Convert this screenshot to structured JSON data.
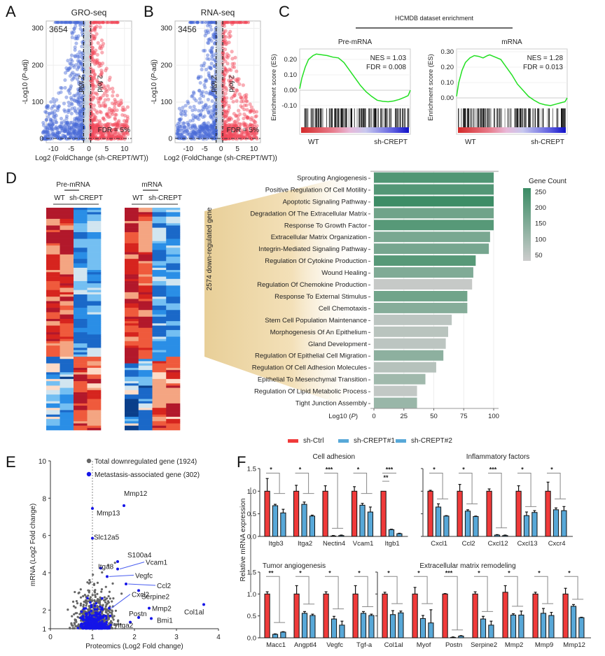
{
  "figure": {
    "panel_letters": [
      "A",
      "B",
      "C",
      "D",
      "E",
      "F"
    ]
  },
  "chart_data": [
    {
      "panel": "A",
      "type": "scatter",
      "title": "GRO-seq",
      "xlabel": "Log2 (FoldChange (sh-CREPT/WT))",
      "ylabel": "-Log10 (P-adj)",
      "xlim": [
        -12,
        12
      ],
      "ylim": [
        -10,
        320
      ],
      "xticks": [
        -10,
        -5,
        0,
        5,
        10
      ],
      "yticks": [
        0,
        100,
        200,
        300
      ],
      "count_label": "3654",
      "fold_line_label": "2 fold",
      "fdr_label": "FDR = 5%",
      "fold_thresholds": [
        -1.5,
        0.5
      ],
      "fdr_threshold": 1.3,
      "series": [
        {
          "name": "down",
          "color": "#4a6bd8",
          "seed": 11,
          "n": 520,
          "side": -1,
          "maxx": 11.5
        },
        {
          "name": "up",
          "color": "#f24a5a",
          "seed": 17,
          "n": 520,
          "side": 1,
          "maxx": 10.5
        },
        {
          "name": "ns",
          "color": "#c9d3dc",
          "seed": 23,
          "n": 120,
          "side": 0,
          "maxx": 1
        }
      ]
    },
    {
      "panel": "B",
      "type": "scatter",
      "title": "RNA-seq",
      "xlabel": "Log2 (FoldChange (sh-CREPT/WT))",
      "ylabel": "-Log10 (P-adj)",
      "xlim": [
        -14,
        12
      ],
      "ylim": [
        -10,
        320
      ],
      "xticks": [
        -10,
        -5,
        0,
        5,
        10
      ],
      "yticks": [
        0,
        100,
        200,
        300
      ],
      "count_label": "3456",
      "fold_line_label": "2 fold",
      "fdr_label": "FDR = 5%",
      "fold_thresholds": [
        -1.5,
        0.5
      ],
      "fdr_threshold": 1.3,
      "series": [
        {
          "name": "down",
          "color": "#4a6bd8",
          "seed": 31,
          "n": 480,
          "side": -1,
          "maxx": 12
        },
        {
          "name": "up",
          "color": "#f24a5a",
          "seed": 37,
          "n": 480,
          "side": 1,
          "maxx": 10.5
        },
        {
          "name": "ns",
          "color": "#c9d3dc",
          "seed": 41,
          "n": 120,
          "side": 0,
          "maxx": 1
        }
      ]
    },
    {
      "panel": "C",
      "type": "line",
      "header": "HCMDB dataset enrichment",
      "plots": [
        {
          "title": "Pre-mRNA",
          "ylabel": "Enrichment score (ES)",
          "ylim": [
            -0.1,
            0.25
          ],
          "yticks": [
            "0.20",
            "0.10",
            "0.00",
            "-0.10"
          ],
          "ytick_values": [
            0.2,
            0.1,
            0.0,
            -0.1
          ],
          "nes": "NES =  1.03",
          "fdr": "FDR = 0.008",
          "xlabels": [
            "WT",
            "sh-CREPT"
          ],
          "es_curve": [
            [
              0,
              0.01
            ],
            [
              0.02,
              0.08
            ],
            [
              0.05,
              0.15
            ],
            [
              0.08,
              0.2
            ],
            [
              0.12,
              0.225
            ],
            [
              0.15,
              0.235
            ],
            [
              0.2,
              0.23
            ],
            [
              0.25,
              0.225
            ],
            [
              0.3,
              0.215
            ],
            [
              0.35,
              0.21
            ],
            [
              0.4,
              0.18
            ],
            [
              0.45,
              0.13
            ],
            [
              0.5,
              0.08
            ],
            [
              0.55,
              0.03
            ],
            [
              0.6,
              -0.01
            ],
            [
              0.65,
              -0.04
            ],
            [
              0.7,
              -0.065
            ],
            [
              0.75,
              -0.072
            ],
            [
              0.8,
              -0.075
            ],
            [
              0.85,
              -0.07
            ],
            [
              0.9,
              -0.06
            ],
            [
              0.95,
              -0.045
            ],
            [
              0.98,
              -0.035
            ],
            [
              1.0,
              0.0
            ]
          ]
        },
        {
          "title": "mRNA",
          "ylabel": "Enrichment score (ES)",
          "ylim": [
            -0.05,
            0.3
          ],
          "yticks": [
            "0.30",
            "0.20",
            "0.10",
            "0.00"
          ],
          "ytick_values": [
            0.3,
            0.2,
            0.1,
            0.0
          ],
          "nes": "NES =  1.28",
          "fdr": "FDR = 0.013",
          "xlabels": [
            "WT",
            "sh-CREPT"
          ],
          "es_curve": [
            [
              0,
              0.01
            ],
            [
              0.02,
              0.1
            ],
            [
              0.05,
              0.18
            ],
            [
              0.08,
              0.23
            ],
            [
              0.12,
              0.26
            ],
            [
              0.16,
              0.275
            ],
            [
              0.2,
              0.27
            ],
            [
              0.24,
              0.26
            ],
            [
              0.28,
              0.275
            ],
            [
              0.3,
              0.28
            ],
            [
              0.35,
              0.265
            ],
            [
              0.4,
              0.25
            ],
            [
              0.45,
              0.2
            ],
            [
              0.5,
              0.15
            ],
            [
              0.55,
              0.09
            ],
            [
              0.6,
              0.05
            ],
            [
              0.65,
              0.01
            ],
            [
              0.7,
              -0.015
            ],
            [
              0.75,
              -0.035
            ],
            [
              0.8,
              -0.045
            ],
            [
              0.85,
              -0.05
            ],
            [
              0.9,
              -0.04
            ],
            [
              0.95,
              -0.03
            ],
            [
              0.98,
              -0.025
            ],
            [
              1.0,
              0.0
            ]
          ]
        }
      ]
    },
    {
      "panel": "D-heatmap",
      "type": "heatmap",
      "groups": [
        {
          "title": "Pre-mRNA",
          "subgroups": [
            "WT",
            "sh-CREPT"
          ],
          "seed": 5
        },
        {
          "title": "mRNA",
          "subgroups": [
            "WT",
            "sh-CREPT"
          ],
          "seed": 9
        }
      ],
      "side_label": "2574 down-regulated gene"
    },
    {
      "panel": "D-bar",
      "type": "bar",
      "orientation": "horizontal",
      "xlabel": "Log10 (P)",
      "xlim": [
        0,
        100
      ],
      "xticks": [
        0,
        25,
        50,
        75,
        100
      ],
      "legend_title": "Gene Count",
      "legend_ticks": [
        250,
        200,
        150,
        100,
        50
      ],
      "legend_range": [
        30,
        260
      ],
      "categories": [
        "Sprouting Angiogenesis",
        "Positive Regulation Of Cell Motility",
        "Apoptotic Signaling Pathway",
        "Degradation Of The Extracellular Matrix",
        "Response To Growth Factor",
        "Extracellular Matrix Organization",
        "Integrin-Mediated Signaling Pathway",
        "Regulation Of Cytokine Production",
        "Wound Healing",
        "Regulation Of Chemokine Production",
        "Response To External Stimulus",
        "Cell Chemotaxis",
        "Stem Cell Population Maintenance",
        "Morphogenesis Of An Epithelium",
        "Gland Development",
        "Regulation Of Epithelial Cell Migration",
        "Regulation Of Cell Adhesion Molecules",
        "Epithelial To Mesenchymal Transition",
        "Regulation Of Lipid Metabolic Process",
        "Tight Junction Assembly"
      ],
      "values": [
        100,
        100,
        100,
        100,
        100,
        97,
        96,
        85,
        83,
        82,
        78,
        78,
        65,
        62,
        60,
        58,
        52,
        43,
        36,
        36
      ],
      "gene_counts": [
        225,
        220,
        255,
        175,
        215,
        160,
        165,
        215,
        150,
        40,
        175,
        140,
        55,
        60,
        55,
        130,
        65,
        100,
        45,
        110
      ]
    },
    {
      "panel": "E",
      "type": "scatter",
      "xlabel": "Proteomics (Log2 Fold change)",
      "ylabel": "mRNA (Log2 Fold change)",
      "xlim": [
        0,
        4
      ],
      "ylim": [
        1,
        10
      ],
      "xticks": [
        0,
        1,
        2,
        3,
        4
      ],
      "yticks": [
        1,
        2,
        4,
        6,
        8,
        10
      ],
      "vline_x": 1.0,
      "legend": [
        {
          "label": "Total downregulated gene (1924)",
          "color": "#666666"
        },
        {
          "label": "Metastasis-associated gene (302)",
          "color": "#1515e8"
        }
      ],
      "labeled_points": [
        {
          "label": "Mmp12",
          "x": 1.75,
          "y": 7.6
        },
        {
          "label": "Mmp13",
          "x": 1.0,
          "y": 7.45
        },
        {
          "label": "Slc12a5",
          "x": 1.0,
          "y": 5.85
        },
        {
          "label": "S100a4",
          "x": 1.6,
          "y": 4.6
        },
        {
          "label": "Vcam1",
          "x": 1.6,
          "y": 4.2
        },
        {
          "label": "Itga8",
          "x": 1.2,
          "y": 4.25
        },
        {
          "label": "Vegfc",
          "x": 1.35,
          "y": 3.8
        },
        {
          "label": "Ccl2",
          "x": 1.8,
          "y": 3.4
        },
        {
          "label": "Serpine2",
          "x": 2.1,
          "y": 3.05
        },
        {
          "label": "Cxcl2",
          "x": 1.4,
          "y": 2.1
        },
        {
          "label": "Mmp2",
          "x": 2.35,
          "y": 2.1
        },
        {
          "label": "Postn",
          "x": 2.1,
          "y": 1.6
        },
        {
          "label": "Itga2",
          "x": 1.9,
          "y": 1.35
        },
        {
          "label": "Bmi1",
          "x": 2.4,
          "y": 1.55
        },
        {
          "label": "Col1al",
          "x": 3.65,
          "y": 2.3
        }
      ]
    },
    {
      "panel": "F",
      "type": "bar",
      "ylabel": "Relative mRNA expression",
      "ylim": [
        0,
        1.5
      ],
      "yticks": [
        "0.0",
        "0.5",
        "1.0",
        "1.5"
      ],
      "ytick_values": [
        0,
        0.5,
        1.0,
        1.5
      ],
      "legend": [
        {
          "label": "sh-Ctrl",
          "color": "#f03a3a"
        },
        {
          "label": "sh-CREPT#1",
          "color": "#58a8d8"
        },
        {
          "label": "sh-CREPT#2",
          "color": "#58a8d8"
        }
      ],
      "panels": [
        {
          "title": "Cell adhesion",
          "row": 0,
          "col": 0,
          "genes": [
            {
              "name": "Itgb3",
              "values": [
                1.0,
                0.68,
                0.52
              ],
              "err": [
                0.28,
                0.03,
                0.08
              ],
              "sig": "*",
              "bar_y": 0.95
            },
            {
              "name": "Itga2",
              "values": [
                1.0,
                0.71,
                0.45
              ],
              "err": [
                0.13,
                0.05,
                0.02
              ],
              "sig": "*",
              "bar_y": 0.95
            },
            {
              "name": "Nectin4",
              "values": [
                1.0,
                0.01,
                0.02
              ],
              "err": [
                0.12,
                0.01,
                0.01
              ],
              "sig": "***",
              "bar_y": 0.18
            },
            {
              "name": "Vcam1",
              "values": [
                1.0,
                0.69,
                0.54
              ],
              "err": [
                0.1,
                0.04,
                0.11
              ],
              "sig": "*",
              "bar_y": 0.95
            },
            {
              "name": "Itgb1",
              "values": [
                1.0,
                0.15,
                0.06
              ],
              "err": [
                0.0,
                0.01,
                0.01
              ],
              "sig": "***",
              "sig2": "**",
              "bar_y": null
            }
          ]
        },
        {
          "title": "Inflammatory factors",
          "row": 0,
          "col": 1,
          "genes": [
            {
              "name": "Cxcl1",
              "values": [
                1.0,
                0.65,
                0.45
              ],
              "err": [
                0.02,
                0.07,
                0.01
              ],
              "sig": "*",
              "bar_y": 0.83
            },
            {
              "name": "Ccl2",
              "values": [
                1.0,
                0.56,
                0.44
              ],
              "err": [
                0.15,
                0.03,
                0.01
              ],
              "sig": "*",
              "bar_y": 0.72
            },
            {
              "name": "Cxcl12",
              "values": [
                1.0,
                0.03,
                0.02
              ],
              "err": [
                0.05,
                0.01,
                0.01
              ],
              "sig": "***",
              "bar_y": 0.19
            },
            {
              "name": "Cxcl13",
              "values": [
                1.0,
                0.46,
                0.53
              ],
              "err": [
                0.12,
                0.08,
                0.04
              ],
              "sig": "*",
              "bar_y": 0.66
            },
            {
              "name": "Cxcr4",
              "values": [
                1.0,
                0.59,
                0.57
              ],
              "err": [
                0.2,
                0.04,
                0.09
              ],
              "sig": "*",
              "bar_y": 0.83
            }
          ]
        },
        {
          "title": "Tumor angiogenesis",
          "row": 1,
          "col": 0,
          "genes": [
            {
              "name": "Macc1",
              "values": [
                1.0,
                0.08,
                0.13
              ],
              "err": [
                0.05,
                0.01,
                0.01
              ],
              "sig": "**",
              "bar_y": 0.35
            },
            {
              "name": "Angptl4",
              "values": [
                1.0,
                0.56,
                0.51
              ],
              "err": [
                0.19,
                0.04,
                0.03
              ],
              "sig": "*",
              "bar_y": 0.77
            },
            {
              "name": "Vegfc",
              "values": [
                1.0,
                0.43,
                0.29
              ],
              "err": [
                0.05,
                0.06,
                0.09
              ],
              "sig": "*",
              "bar_y": 0.66
            },
            {
              "name": "Tgf-a",
              "values": [
                1.0,
                0.56,
                0.51
              ],
              "err": [
                0.19,
                0.04,
                0.03
              ],
              "sig": "*",
              "bar_y": 0.71
            }
          ]
        },
        {
          "title": "Extracellular matrix remodeling",
          "row": 1,
          "col": 1,
          "genes": [
            {
              "name": "Col1al",
              "values": [
                1.0,
                0.53,
                0.57
              ],
              "err": [
                0.04,
                0.09,
                0.04
              ],
              "sig": "*",
              "bar_y": 0.78
            },
            {
              "name": "Myof",
              "values": [
                1.0,
                0.44,
                0.34
              ],
              "err": [
                0.15,
                0.07,
                0.3
              ],
              "sig": "*",
              "bar_y": 0.78
            },
            {
              "name": "Postn",
              "values": [
                1.0,
                0.01,
                0.04
              ],
              "err": [
                0.01,
                0.01,
                0.01
              ],
              "sig": "***",
              "bar_y": 0.18
            },
            {
              "name": "Serpine2",
              "values": [
                1.0,
                0.43,
                0.29
              ],
              "err": [
                0.05,
                0.06,
                0.09
              ],
              "sig": "*",
              "bar_y": 0.6
            },
            {
              "name": "Mmp2",
              "values": [
                1.04,
                0.52,
                0.52
              ],
              "err": [
                0.15,
                0.03,
                0.09
              ],
              "sig": "*",
              "bar_y": 0.72
            },
            {
              "name": "Mmp9",
              "values": [
                1.0,
                0.56,
                0.51
              ],
              "err": [
                0.04,
                0.11,
                0.07
              ],
              "sig": "*",
              "bar_y": 0.78
            },
            {
              "name": "Mmp12",
              "values": [
                1.0,
                0.72,
                0.46
              ],
              "err": [
                0.13,
                0.04,
                0.01
              ],
              "sig": "*",
              "bar_y": 0.88
            }
          ]
        }
      ]
    }
  ]
}
